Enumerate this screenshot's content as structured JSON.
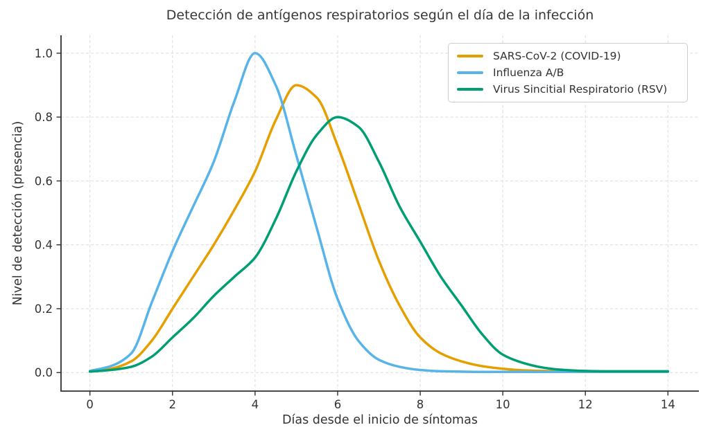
{
  "title": "Detección de antígenos respiratorios según el día de la infección",
  "chart_data": {
    "type": "line",
    "title": "Detección de antígenos respiratorios según el día de la infección",
    "xlabel": "Días desde el inicio de síntomas",
    "ylabel": "Nivel de detección (presencia)",
    "xlim": [
      -0.7,
      14.75
    ],
    "ylim": [
      -0.058,
      1.056
    ],
    "grid": true,
    "grid_style": "light gray dashed, both axes",
    "legend_position": "upper right",
    "x_ticks": {
      "values": [
        0,
        2,
        4,
        6,
        8,
        10,
        12,
        14
      ],
      "labels": [
        "0",
        "2",
        "4",
        "6",
        "8",
        "10",
        "12",
        "14"
      ]
    },
    "y_ticks": {
      "values": [
        0.0,
        0.2,
        0.4,
        0.6,
        0.8,
        1.0
      ],
      "labels": [
        "0.0",
        "0.2",
        "0.4",
        "0.6",
        "0.8",
        "1.0"
      ]
    },
    "x": [
      0,
      0.5,
      1,
      1.5,
      2,
      2.5,
      3,
      3.5,
      4,
      4.5,
      5,
      5.5,
      6,
      6.5,
      7,
      7.5,
      8,
      8.5,
      9,
      9.5,
      10,
      10.5,
      11,
      11.5,
      12,
      12.5,
      13,
      13.5,
      14
    ],
    "series": [
      {
        "name": "SARS-CoV-2 (COVID-19)",
        "color": "#E69F00",
        "peak_day": 5,
        "peak_value": 0.9,
        "values": [
          0.004,
          0.012,
          0.035,
          0.1,
          0.2,
          0.3,
          0.4,
          0.51,
          0.63,
          0.79,
          0.9,
          0.86,
          0.71,
          0.53,
          0.35,
          0.21,
          0.11,
          0.06,
          0.035,
          0.02,
          0.012,
          0.007,
          0.005,
          0.004,
          0.003,
          0.003,
          0.003,
          0.003,
          0.003
        ]
      },
      {
        "name": "Influenza A/B",
        "color": "#56B4E9",
        "peak_day": 4,
        "peak_value": 1.0,
        "values": [
          0.005,
          0.02,
          0.06,
          0.22,
          0.38,
          0.52,
          0.66,
          0.85,
          1.0,
          0.9,
          0.68,
          0.45,
          0.23,
          0.1,
          0.04,
          0.018,
          0.008,
          0.004,
          0.003,
          0.002,
          0.002,
          0.002,
          0.002,
          0.002,
          0.002,
          0.002,
          0.002,
          0.002,
          0.002
        ]
      },
      {
        "name": "Virus Sincitial Respiratorio (RSV)",
        "color": "#009E73",
        "peak_day": 6,
        "peak_value": 0.8,
        "values": [
          0.003,
          0.008,
          0.018,
          0.05,
          0.11,
          0.17,
          0.24,
          0.3,
          0.36,
          0.48,
          0.63,
          0.745,
          0.8,
          0.77,
          0.66,
          0.52,
          0.41,
          0.3,
          0.21,
          0.12,
          0.056,
          0.03,
          0.015,
          0.008,
          0.005,
          0.004,
          0.004,
          0.004,
          0.004
        ]
      }
    ],
    "colors": {
      "text": "#333333",
      "title": "#383838",
      "spine": "#2e2e2e",
      "grid": "#dcdcdc",
      "legend_border": "#cccccc",
      "background": "#ffffff"
    }
  }
}
